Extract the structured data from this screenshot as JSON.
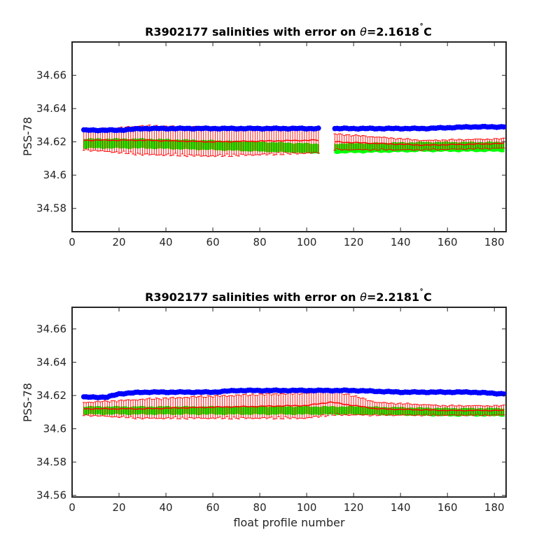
{
  "colors": {
    "float_salinity": "#0000ff",
    "mapped_salinity": "#00ff00",
    "calibrated_salinity": "#ff0000",
    "axes": "#262626"
  },
  "chart_data": [
    {
      "type": "scatter",
      "title_text": "R3902177 salinities with error on ",
      "title_theta": "θ",
      "title_value": "=2.1618",
      "title_deg": "˚",
      "title_unit": "C",
      "xlabel": "",
      "ylabel": "PSS-78",
      "xlim": [
        0,
        185
      ],
      "ylim": [
        34.566,
        34.68
      ],
      "xticks": [
        0,
        20,
        40,
        60,
        80,
        100,
        120,
        140,
        160,
        180
      ],
      "yticks": [
        34.58,
        34.6,
        34.62,
        34.64,
        34.66
      ],
      "ytick_labels": [
        "34.58",
        "34.6",
        "34.62",
        "34.64",
        "34.66"
      ],
      "grid": false,
      "gaps": [
        [
          105,
          112
        ]
      ],
      "x_range": [
        5,
        184
      ],
      "series": [
        {
          "role": "float",
          "style": "markers",
          "anchors_x": [
            5,
            20,
            30,
            50,
            60,
            80,
            104,
            112,
            130,
            150,
            170,
            184
          ],
          "anchors_y": [
            34.627,
            34.627,
            34.628,
            34.628,
            34.628,
            34.628,
            34.628,
            34.628,
            34.628,
            34.628,
            34.629,
            34.629
          ]
        },
        {
          "role": "mapped",
          "style": "band",
          "anchors_x": [
            5,
            30,
            60,
            104,
            112,
            150,
            184
          ],
          "anchors_y": [
            34.619,
            34.619,
            34.618,
            34.616,
            34.616,
            34.617,
            34.617
          ],
          "band_half_width": 0.0025
        },
        {
          "role": "calibrated",
          "style": "line-with-errorbars",
          "anchors_x": [
            5,
            30,
            60,
            104,
            112,
            150,
            184
          ],
          "anchors_y": [
            34.621,
            34.621,
            34.62,
            34.621,
            34.62,
            34.618,
            34.619
          ],
          "error": [
            0.006,
            0.009,
            0.009,
            0.008,
            0.005,
            0.003,
            0.003
          ]
        }
      ]
    },
    {
      "type": "scatter",
      "title_text": "R3902177 salinities with error on ",
      "title_theta": "θ",
      "title_value": "=2.2181",
      "title_deg": "˚",
      "title_unit": "C",
      "xlabel": "float profile number",
      "ylabel": "PSS-78",
      "xlim": [
        0,
        185
      ],
      "ylim": [
        34.559,
        34.673
      ],
      "xticks": [
        0,
        20,
        40,
        60,
        80,
        100,
        120,
        140,
        160,
        180
      ],
      "yticks": [
        34.56,
        34.58,
        34.6,
        34.62,
        34.64,
        34.66
      ],
      "ytick_labels": [
        "34.56",
        "34.58",
        "34.6",
        "34.62",
        "34.64",
        "34.66"
      ],
      "grid": false,
      "gaps": [],
      "x_range": [
        5,
        184
      ],
      "series": [
        {
          "role": "float",
          "style": "markers",
          "anchors_x": [
            5,
            15,
            20,
            30,
            60,
            70,
            100,
            120,
            140,
            160,
            170,
            184
          ],
          "anchors_y": [
            34.619,
            34.619,
            34.621,
            34.622,
            34.622,
            34.623,
            34.623,
            34.623,
            34.622,
            34.622,
            34.622,
            34.621
          ]
        },
        {
          "role": "mapped",
          "style": "band",
          "anchors_x": [
            5,
            40,
            80,
            120,
            160,
            184
          ],
          "anchors_y": [
            34.611,
            34.611,
            34.611,
            34.611,
            34.61,
            34.61
          ],
          "band_half_width": 0.002
        },
        {
          "role": "calibrated",
          "style": "line-with-errorbars",
          "anchors_x": [
            5,
            30,
            60,
            100,
            110,
            130,
            160,
            184
          ],
          "anchors_y": [
            34.612,
            34.612,
            34.613,
            34.614,
            34.616,
            34.612,
            34.611,
            34.611
          ],
          "error": [
            0.004,
            0.006,
            0.007,
            0.008,
            0.008,
            0.004,
            0.003,
            0.003
          ]
        }
      ]
    }
  ]
}
